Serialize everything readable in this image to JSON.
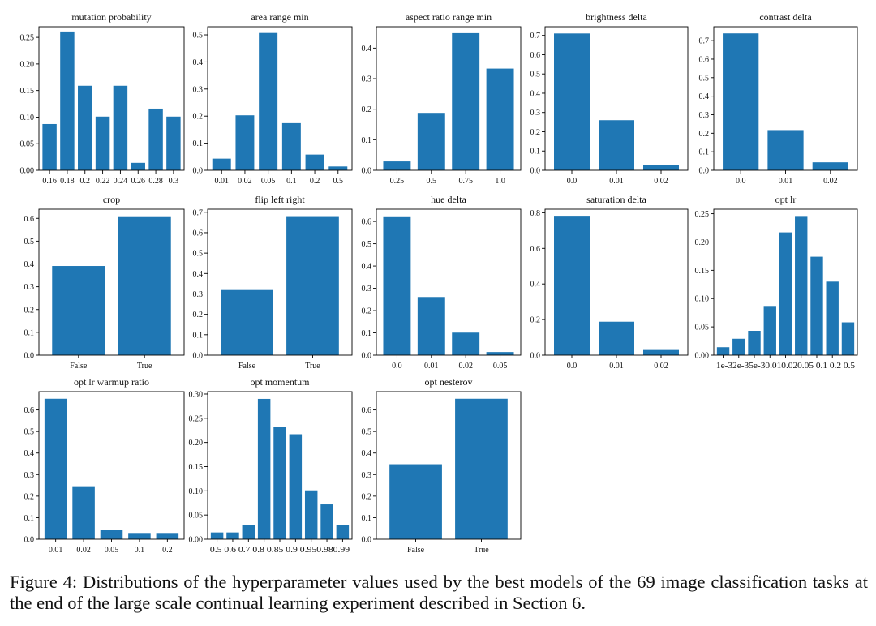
{
  "colors": {
    "bar": "#1f77b4",
    "axis": "#000000",
    "text": "#111111"
  },
  "chart_data": [
    {
      "type": "bar",
      "title": "mutation probability",
      "categories": [
        "0.16",
        "0.18",
        "0.2",
        "0.22",
        "0.24",
        "0.26",
        "0.28",
        "0.3"
      ],
      "values": [
        0.087,
        0.261,
        0.159,
        0.101,
        0.159,
        0.014,
        0.116,
        0.101
      ],
      "ylim": [
        0,
        0.27
      ],
      "yticks": [
        0.0,
        0.05,
        0.1,
        0.15,
        0.2,
        0.25
      ],
      "ytick_labels": [
        "0.00",
        "0.05",
        "0.10",
        "0.15",
        "0.20",
        "0.25"
      ]
    },
    {
      "type": "bar",
      "title": "area range min",
      "categories": [
        "0.01",
        "0.02",
        "0.05",
        "0.1",
        "0.2",
        "0.5"
      ],
      "values": [
        0.043,
        0.203,
        0.507,
        0.174,
        0.058,
        0.014
      ],
      "ylim": [
        0,
        0.53
      ],
      "yticks": [
        0,
        0.1,
        0.2,
        0.3,
        0.4,
        0.5
      ],
      "ytick_labels": [
        "0.0",
        "0.1",
        "0.2",
        "0.3",
        "0.4",
        "0.5"
      ]
    },
    {
      "type": "bar",
      "title": "aspect ratio range min",
      "categories": [
        "0.25",
        "0.5",
        "0.75",
        "1.0"
      ],
      "values": [
        0.029,
        0.188,
        0.449,
        0.333
      ],
      "ylim": [
        0,
        0.47
      ],
      "yticks": [
        0,
        0.1,
        0.2,
        0.3,
        0.4
      ],
      "ytick_labels": [
        "0.0",
        "0.1",
        "0.2",
        "0.3",
        "0.4"
      ]
    },
    {
      "type": "bar",
      "title": "brightness delta",
      "categories": [
        "0.0",
        "0.01",
        "0.02"
      ],
      "values": [
        0.71,
        0.26,
        0.029
      ],
      "ylim": [
        0,
        0.745
      ],
      "yticks": [
        0,
        0.1,
        0.2,
        0.3,
        0.4,
        0.5,
        0.6,
        0.7
      ],
      "ytick_labels": [
        "0.0",
        "0.1",
        "0.2",
        "0.3",
        "0.4",
        "0.5",
        "0.6",
        "0.7"
      ]
    },
    {
      "type": "bar",
      "title": "contrast delta",
      "categories": [
        "0.0",
        "0.01",
        "0.02"
      ],
      "values": [
        0.739,
        0.217,
        0.043
      ],
      "ylim": [
        0,
        0.775
      ],
      "yticks": [
        0,
        0.1,
        0.2,
        0.3,
        0.4,
        0.5,
        0.6,
        0.7
      ],
      "ytick_labels": [
        "0.0",
        "0.1",
        "0.2",
        "0.3",
        "0.4",
        "0.5",
        "0.6",
        "0.7"
      ]
    },
    {
      "type": "bar",
      "title": "crop",
      "categories": [
        "False",
        "True"
      ],
      "values": [
        0.391,
        0.609
      ],
      "ylim": [
        0,
        0.64
      ],
      "yticks": [
        0,
        0.1,
        0.2,
        0.3,
        0.4,
        0.5,
        0.6
      ],
      "ytick_labels": [
        "0.0",
        "0.1",
        "0.2",
        "0.3",
        "0.4",
        "0.5",
        "0.6"
      ]
    },
    {
      "type": "bar",
      "title": "flip left right",
      "categories": [
        "False",
        "True"
      ],
      "values": [
        0.319,
        0.681
      ],
      "ylim": [
        0,
        0.715
      ],
      "yticks": [
        0,
        0.1,
        0.2,
        0.3,
        0.4,
        0.5,
        0.6,
        0.7
      ],
      "ytick_labels": [
        "0.0",
        "0.1",
        "0.2",
        "0.3",
        "0.4",
        "0.5",
        "0.6",
        "0.7"
      ]
    },
    {
      "type": "bar",
      "title": "hue delta",
      "categories": [
        "0.0",
        "0.01",
        "0.02",
        "0.05"
      ],
      "values": [
        0.623,
        0.261,
        0.101,
        0.014
      ],
      "ylim": [
        0,
        0.655
      ],
      "yticks": [
        0,
        0.1,
        0.2,
        0.3,
        0.4,
        0.5,
        0.6
      ],
      "ytick_labels": [
        "0.0",
        "0.1",
        "0.2",
        "0.3",
        "0.4",
        "0.5",
        "0.6"
      ]
    },
    {
      "type": "bar",
      "title": "saturation delta",
      "categories": [
        "0.0",
        "0.01",
        "0.02"
      ],
      "values": [
        0.783,
        0.188,
        0.029
      ],
      "ylim": [
        0,
        0.82
      ],
      "yticks": [
        0,
        0.2,
        0.4,
        0.6,
        0.8
      ],
      "ytick_labels": [
        "0.0",
        "0.2",
        "0.4",
        "0.6",
        "0.8"
      ]
    },
    {
      "type": "bar",
      "title": "opt lr",
      "categories": [
        "1e-3",
        "2e-3",
        "5e-3",
        "0.01",
        "0.02",
        "0.05",
        "0.1",
        "0.2",
        "0.5"
      ],
      "tick_labels_row": "1e-32e-35e-30.010.020.05 0.1 0.2 0.5",
      "values": [
        0.014,
        0.029,
        0.043,
        0.087,
        0.217,
        0.246,
        0.174,
        0.13,
        0.058
      ],
      "ylim": [
        0,
        0.258
      ],
      "yticks": [
        0,
        0.05,
        0.1,
        0.15,
        0.2,
        0.25
      ],
      "ytick_labels": [
        "0.00",
        "0.05",
        "0.10",
        "0.15",
        "0.20",
        "0.25"
      ]
    },
    {
      "type": "bar",
      "title": "opt lr warmup ratio",
      "categories": [
        "0.01",
        "0.02",
        "0.05",
        "0.1",
        "0.2"
      ],
      "values": [
        0.652,
        0.246,
        0.043,
        0.029,
        0.029
      ],
      "ylim": [
        0,
        0.685
      ],
      "yticks": [
        0,
        0.1,
        0.2,
        0.3,
        0.4,
        0.5,
        0.6
      ],
      "ytick_labels": [
        "0.0",
        "0.1",
        "0.2",
        "0.3",
        "0.4",
        "0.5",
        "0.6"
      ]
    },
    {
      "type": "bar",
      "title": "opt momentum",
      "categories": [
        "0.5",
        "0.6",
        "0.7",
        "0.8",
        "0.85",
        "0.9",
        "0.95",
        "0.98",
        "0.99"
      ],
      "tick_labels_row": "0.5 0.6 0.7 0.8 0.85 0.9 0.950.980.99",
      "values": [
        0.014,
        0.014,
        0.029,
        0.29,
        0.232,
        0.217,
        0.101,
        0.072,
        0.029
      ],
      "ylim": [
        0,
        0.305
      ],
      "yticks": [
        0,
        0.05,
        0.1,
        0.15,
        0.2,
        0.25,
        0.3
      ],
      "ytick_labels": [
        "0.00",
        "0.05",
        "0.10",
        "0.15",
        "0.20",
        "0.25",
        "0.30"
      ]
    },
    {
      "type": "bar",
      "title": "opt nesterov",
      "categories": [
        "False",
        "True"
      ],
      "values": [
        0.348,
        0.652
      ],
      "ylim": [
        0,
        0.685
      ],
      "yticks": [
        0,
        0.1,
        0.2,
        0.3,
        0.4,
        0.5,
        0.6
      ],
      "ytick_labels": [
        "0.0",
        "0.1",
        "0.2",
        "0.3",
        "0.4",
        "0.5",
        "0.6"
      ]
    }
  ],
  "caption": "Figure 4: Distributions of the hyperparameter values used by the best models of the 69 image classification tasks at the end of the large scale continual learning experiment described in Section 6."
}
